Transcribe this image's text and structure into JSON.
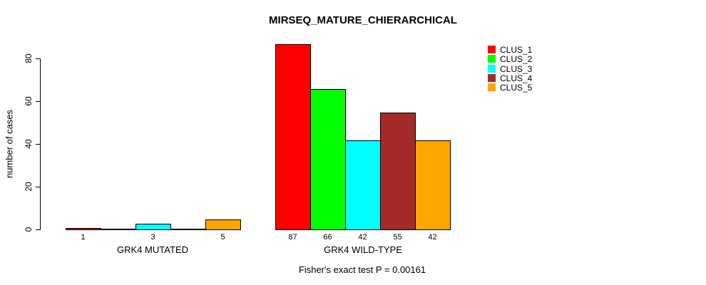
{
  "chart_data": {
    "type": "bar",
    "title": "MIRSEQ_MATURE_CHIERARCHICAL",
    "subtitle": "Fisher's exact test P = 0.00161",
    "xlabel": "",
    "ylabel": "number of cases",
    "ylim": [
      0,
      87
    ],
    "yticks": [
      0,
      20,
      40,
      60,
      80
    ],
    "grid": false,
    "legend_position": "top-right",
    "clusters": [
      {
        "name": "CLUS_1",
        "color": "#FF0000"
      },
      {
        "name": "CLUS_2",
        "color": "#00FF00"
      },
      {
        "name": "CLUS_3",
        "color": "#00FFFF"
      },
      {
        "name": "CLUS_4",
        "color": "#A52A2A"
      },
      {
        "name": "CLUS_5",
        "color": "#FFA500"
      }
    ],
    "groups": [
      {
        "label": "GRK4 MUTATED",
        "values": [
          1,
          0,
          3,
          0,
          5
        ],
        "bar_labels": [
          "1",
          "",
          "3",
          "",
          "5"
        ]
      },
      {
        "label": "GRK4 WILD-TYPE",
        "values": [
          87,
          66,
          42,
          55,
          42
        ],
        "bar_labels": [
          "87",
          "66",
          "42",
          "55",
          "42"
        ]
      }
    ]
  }
}
